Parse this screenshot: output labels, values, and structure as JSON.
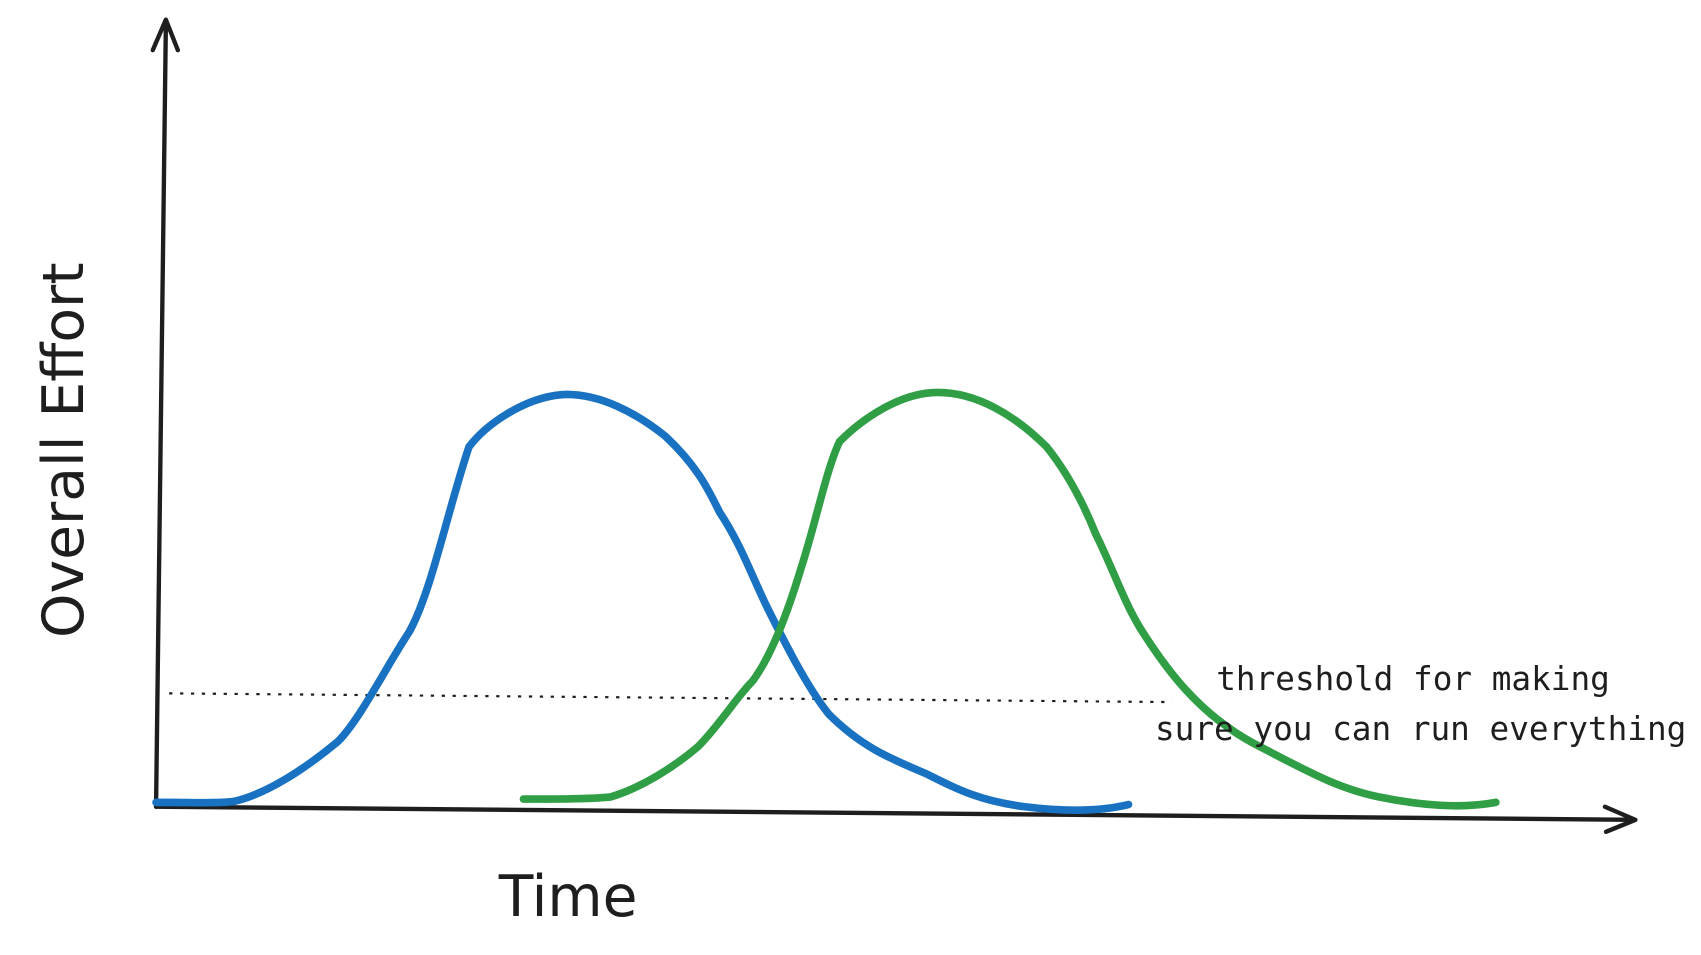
{
  "y_axis": {
    "label": "Overall Effort"
  },
  "x_axis": {
    "label": "Time"
  },
  "annotation": {
    "lines": [
      "threshold for making",
      "sure you can run everything"
    ]
  }
}
